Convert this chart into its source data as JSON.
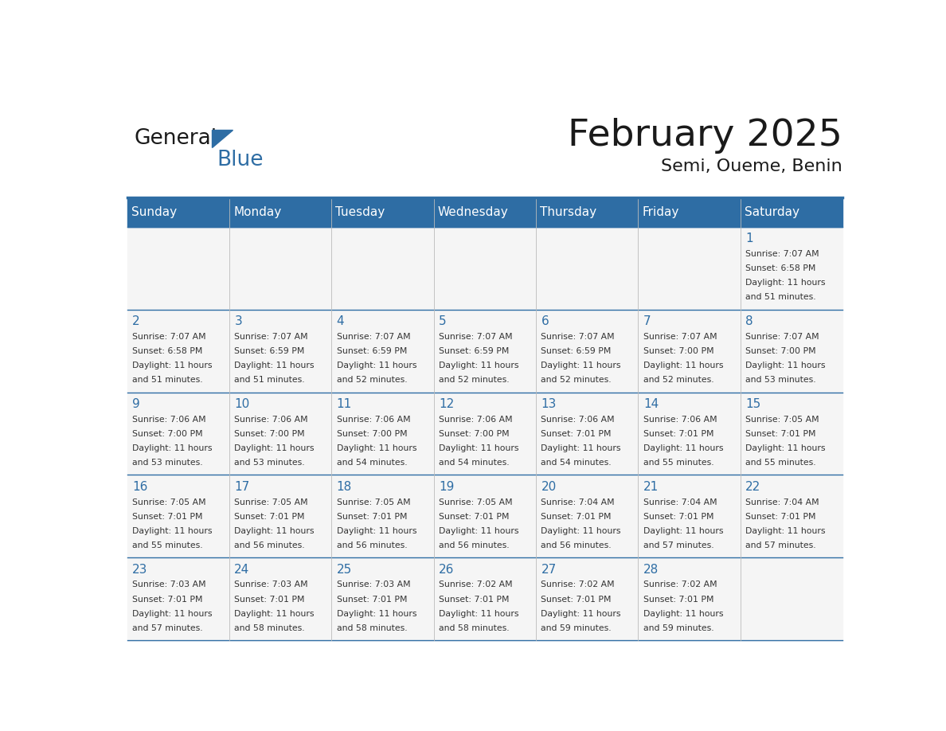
{
  "title": "February 2025",
  "subtitle": "Semi, Oueme, Benin",
  "header_bg": "#2E6DA4",
  "header_text_color": "#FFFFFF",
  "day_headers": [
    "Sunday",
    "Monday",
    "Tuesday",
    "Wednesday",
    "Thursday",
    "Friday",
    "Saturday"
  ],
  "title_color": "#1a1a1a",
  "subtitle_color": "#1a1a1a",
  "line_color": "#2E6DA4",
  "day_number_color": "#2E6DA4",
  "cell_text_color": "#333333",
  "cell_bg": "#F5F5F5",
  "calendar_data": [
    [
      null,
      null,
      null,
      null,
      null,
      null,
      {
        "day": "1",
        "sunrise": "7:07 AM",
        "sunset": "6:58 PM",
        "daylight_line1": "Daylight: 11 hours",
        "daylight_line2": "and 51 minutes."
      }
    ],
    [
      {
        "day": "2",
        "sunrise": "7:07 AM",
        "sunset": "6:58 PM",
        "daylight_line1": "Daylight: 11 hours",
        "daylight_line2": "and 51 minutes."
      },
      {
        "day": "3",
        "sunrise": "7:07 AM",
        "sunset": "6:59 PM",
        "daylight_line1": "Daylight: 11 hours",
        "daylight_line2": "and 51 minutes."
      },
      {
        "day": "4",
        "sunrise": "7:07 AM",
        "sunset": "6:59 PM",
        "daylight_line1": "Daylight: 11 hours",
        "daylight_line2": "and 52 minutes."
      },
      {
        "day": "5",
        "sunrise": "7:07 AM",
        "sunset": "6:59 PM",
        "daylight_line1": "Daylight: 11 hours",
        "daylight_line2": "and 52 minutes."
      },
      {
        "day": "6",
        "sunrise": "7:07 AM",
        "sunset": "6:59 PM",
        "daylight_line1": "Daylight: 11 hours",
        "daylight_line2": "and 52 minutes."
      },
      {
        "day": "7",
        "sunrise": "7:07 AM",
        "sunset": "7:00 PM",
        "daylight_line1": "Daylight: 11 hours",
        "daylight_line2": "and 52 minutes."
      },
      {
        "day": "8",
        "sunrise": "7:07 AM",
        "sunset": "7:00 PM",
        "daylight_line1": "Daylight: 11 hours",
        "daylight_line2": "and 53 minutes."
      }
    ],
    [
      {
        "day": "9",
        "sunrise": "7:06 AM",
        "sunset": "7:00 PM",
        "daylight_line1": "Daylight: 11 hours",
        "daylight_line2": "and 53 minutes."
      },
      {
        "day": "10",
        "sunrise": "7:06 AM",
        "sunset": "7:00 PM",
        "daylight_line1": "Daylight: 11 hours",
        "daylight_line2": "and 53 minutes."
      },
      {
        "day": "11",
        "sunrise": "7:06 AM",
        "sunset": "7:00 PM",
        "daylight_line1": "Daylight: 11 hours",
        "daylight_line2": "and 54 minutes."
      },
      {
        "day": "12",
        "sunrise": "7:06 AM",
        "sunset": "7:00 PM",
        "daylight_line1": "Daylight: 11 hours",
        "daylight_line2": "and 54 minutes."
      },
      {
        "day": "13",
        "sunrise": "7:06 AM",
        "sunset": "7:01 PM",
        "daylight_line1": "Daylight: 11 hours",
        "daylight_line2": "and 54 minutes."
      },
      {
        "day": "14",
        "sunrise": "7:06 AM",
        "sunset": "7:01 PM",
        "daylight_line1": "Daylight: 11 hours",
        "daylight_line2": "and 55 minutes."
      },
      {
        "day": "15",
        "sunrise": "7:05 AM",
        "sunset": "7:01 PM",
        "daylight_line1": "Daylight: 11 hours",
        "daylight_line2": "and 55 minutes."
      }
    ],
    [
      {
        "day": "16",
        "sunrise": "7:05 AM",
        "sunset": "7:01 PM",
        "daylight_line1": "Daylight: 11 hours",
        "daylight_line2": "and 55 minutes."
      },
      {
        "day": "17",
        "sunrise": "7:05 AM",
        "sunset": "7:01 PM",
        "daylight_line1": "Daylight: 11 hours",
        "daylight_line2": "and 56 minutes."
      },
      {
        "day": "18",
        "sunrise": "7:05 AM",
        "sunset": "7:01 PM",
        "daylight_line1": "Daylight: 11 hours",
        "daylight_line2": "and 56 minutes."
      },
      {
        "day": "19",
        "sunrise": "7:05 AM",
        "sunset": "7:01 PM",
        "daylight_line1": "Daylight: 11 hours",
        "daylight_line2": "and 56 minutes."
      },
      {
        "day": "20",
        "sunrise": "7:04 AM",
        "sunset": "7:01 PM",
        "daylight_line1": "Daylight: 11 hours",
        "daylight_line2": "and 56 minutes."
      },
      {
        "day": "21",
        "sunrise": "7:04 AM",
        "sunset": "7:01 PM",
        "daylight_line1": "Daylight: 11 hours",
        "daylight_line2": "and 57 minutes."
      },
      {
        "day": "22",
        "sunrise": "7:04 AM",
        "sunset": "7:01 PM",
        "daylight_line1": "Daylight: 11 hours",
        "daylight_line2": "and 57 minutes."
      }
    ],
    [
      {
        "day": "23",
        "sunrise": "7:03 AM",
        "sunset": "7:01 PM",
        "daylight_line1": "Daylight: 11 hours",
        "daylight_line2": "and 57 minutes."
      },
      {
        "day": "24",
        "sunrise": "7:03 AM",
        "sunset": "7:01 PM",
        "daylight_line1": "Daylight: 11 hours",
        "daylight_line2": "and 58 minutes."
      },
      {
        "day": "25",
        "sunrise": "7:03 AM",
        "sunset": "7:01 PM",
        "daylight_line1": "Daylight: 11 hours",
        "daylight_line2": "and 58 minutes."
      },
      {
        "day": "26",
        "sunrise": "7:02 AM",
        "sunset": "7:01 PM",
        "daylight_line1": "Daylight: 11 hours",
        "daylight_line2": "and 58 minutes."
      },
      {
        "day": "27",
        "sunrise": "7:02 AM",
        "sunset": "7:01 PM",
        "daylight_line1": "Daylight: 11 hours",
        "daylight_line2": "and 59 minutes."
      },
      {
        "day": "28",
        "sunrise": "7:02 AM",
        "sunset": "7:01 PM",
        "daylight_line1": "Daylight: 11 hours",
        "daylight_line2": "and 59 minutes."
      },
      null
    ]
  ],
  "logo_text1": "General",
  "logo_text2": "Blue",
  "logo_color1": "#1a1a1a",
  "logo_color2": "#2E6DA4",
  "logo_triangle_color": "#2E6DA4",
  "figwidth": 11.88,
  "figheight": 9.18,
  "dpi": 100
}
